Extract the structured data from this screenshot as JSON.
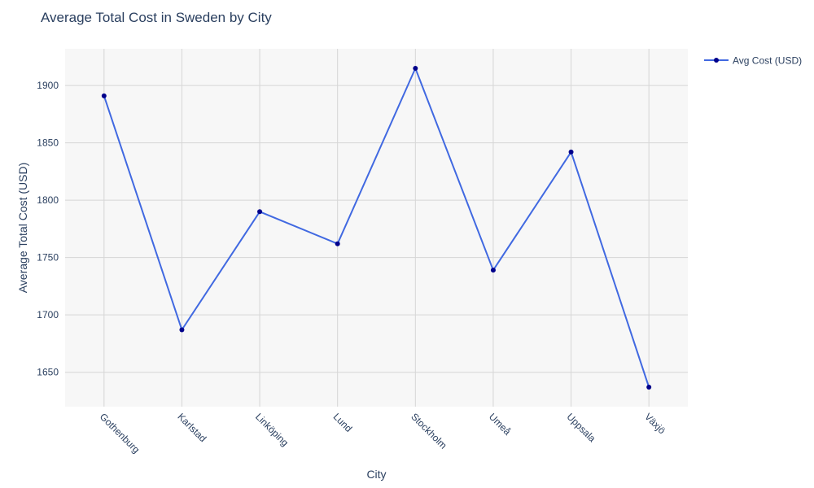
{
  "chart_data": {
    "type": "line",
    "title": "Average Total Cost in Sweden by City",
    "xlabel": "City",
    "ylabel": "Average Total Cost (USD)",
    "categories": [
      "Gothenburg",
      "Karlstad",
      "Linköping",
      "Lund",
      "Stockholm",
      "Umeå",
      "Uppsala",
      "Växjö"
    ],
    "series": [
      {
        "name": "Avg Cost (USD)",
        "values": [
          1891,
          1687,
          1790,
          1762,
          1915,
          1739,
          1842,
          1637
        ],
        "line_color": "#4169e1",
        "marker_color": "#00008b"
      }
    ],
    "ylim": [
      1620,
      1932
    ],
    "yticks": [
      1650,
      1700,
      1750,
      1800,
      1850,
      1900
    ],
    "grid": true,
    "legend_position": "top-right",
    "plot_background": "#f7f7f7"
  }
}
